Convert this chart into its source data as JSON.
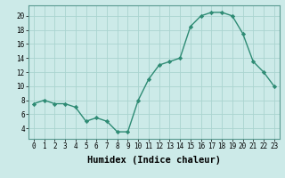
{
  "x": [
    0,
    1,
    2,
    3,
    4,
    5,
    6,
    7,
    8,
    9,
    10,
    11,
    12,
    13,
    14,
    15,
    16,
    17,
    18,
    19,
    20,
    21,
    22,
    23
  ],
  "y": [
    7.5,
    8,
    7.5,
    7.5,
    7,
    5,
    5.5,
    5,
    3.5,
    3.5,
    8,
    11,
    13,
    13.5,
    14,
    18.5,
    20,
    20.5,
    20.5,
    20,
    17.5,
    13.5,
    12,
    10
  ],
  "line_color": "#2e8b74",
  "marker_color": "#2e8b74",
  "bg_color": "#cceae8",
  "grid_color": "#aad4d0",
  "xlabel": "Humidex (Indice chaleur)",
  "xlim": [
    -0.5,
    23.5
  ],
  "ylim": [
    2.5,
    21.5
  ],
  "yticks": [
    4,
    6,
    8,
    10,
    12,
    14,
    16,
    18,
    20
  ],
  "xticks": [
    0,
    1,
    2,
    3,
    4,
    5,
    6,
    7,
    8,
    9,
    10,
    11,
    12,
    13,
    14,
    15,
    16,
    17,
    18,
    19,
    20,
    21,
    22,
    23
  ],
  "tick_fontsize": 5.5,
  "label_fontsize": 7.5
}
